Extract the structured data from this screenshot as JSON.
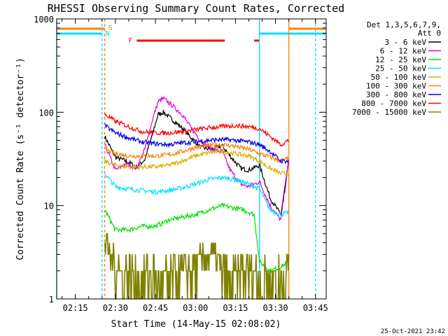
{
  "chart_data": {
    "type": "line",
    "title": "RHESSI Observing Summary Count Rates, Corrected",
    "xlabel": "Start Time (14-May-15 02:08:02)",
    "ylabel": "Corrected Count Rate (s⁻¹ detector⁻¹)",
    "yscale": "log",
    "ylim": [
      1,
      1000
    ],
    "xlim": [
      "02:08",
      "03:49"
    ],
    "x_ticks": [
      "02:15",
      "02:30",
      "02:45",
      "03:00",
      "03:15",
      "03:30",
      "03:45"
    ],
    "y_ticks": [
      "1",
      "10",
      "100",
      "1000"
    ],
    "legend": {
      "header": [
        "Det 1,3,5,6,7,9,",
        "Att 0"
      ],
      "position": "right"
    },
    "footer_date": "25-Oct-2021 23:42",
    "flags": {
      "saa_label": "S",
      "night_label": "N",
      "flare_label": "F",
      "saa_color": "#ff8000",
      "night_color": "#00e0ff",
      "flare_color": "#ff0000",
      "saa_intervals": [
        [
          "02:08",
          "02:26"
        ],
        [
          "03:35",
          "03:49"
        ]
      ],
      "night_intervals": [
        [
          "02:08",
          "02:25"
        ],
        [
          "03:24",
          "03:49"
        ]
      ],
      "flare_intervals": [
        [
          "02:38",
          "03:11"
        ],
        [
          "03:22",
          "03:24"
        ]
      ],
      "vertical_lines": [
        {
          "time": "02:08",
          "color": "#00e0ff",
          "style": "solid"
        },
        {
          "time": "02:25",
          "color": "#00e0ff",
          "style": "dashed"
        },
        {
          "time": "02:26",
          "color": "#ff8000",
          "style": "dashed"
        },
        {
          "time": "03:24",
          "color": "#00e0ff",
          "style": "solid"
        },
        {
          "time": "03:35",
          "color": "#ff8000",
          "style": "solid"
        },
        {
          "time": "03:45",
          "color": "#00e0ff",
          "style": "dashed"
        }
      ]
    },
    "series": [
      {
        "name": "3 - 6 keV",
        "color": "#000000",
        "x": [
          "02:26",
          "02:30",
          "02:34",
          "02:38",
          "02:41",
          "02:44",
          "02:46",
          "02:48",
          "02:52",
          "02:55",
          "02:58",
          "03:02",
          "03:06",
          "03:10",
          "03:13",
          "03:17",
          "03:20",
          "03:24",
          "03:28",
          "03:32",
          "03:35"
        ],
        "y": [
          55,
          33,
          30,
          26,
          31,
          60,
          95,
          100,
          80,
          68,
          55,
          42,
          40,
          44,
          34,
          25,
          24,
          27,
          12,
          8,
          30
        ]
      },
      {
        "name": "6 - 12 keV",
        "color": "#e000e0",
        "x": [
          "02:26",
          "02:30",
          "02:34",
          "02:38",
          "02:41",
          "02:44",
          "02:46",
          "02:48",
          "02:51",
          "02:55",
          "02:58",
          "03:02",
          "03:06",
          "03:10",
          "03:13",
          "03:17",
          "03:20",
          "03:24",
          "03:28",
          "03:32",
          "03:35"
        ],
        "y": [
          45,
          24,
          28,
          25,
          40,
          85,
          130,
          140,
          120,
          95,
          70,
          50,
          40,
          38,
          24,
          17,
          16,
          18,
          10,
          7,
          30
        ]
      },
      {
        "name": "12 - 25 keV",
        "color": "#00e000",
        "x": [
          "02:26",
          "02:30",
          "02:35",
          "02:40",
          "02:45",
          "02:50",
          "02:55",
          "03:00",
          "03:05",
          "03:10",
          "03:14",
          "03:18",
          "03:22",
          "03:24",
          "03:28",
          "03:32",
          "03:35"
        ],
        "y": [
          9,
          5.5,
          5.5,
          6,
          6,
          7,
          7.5,
          8,
          9,
          10,
          9.5,
          9,
          8,
          2.5,
          2,
          2.2,
          2.5
        ]
      },
      {
        "name": "25 - 50 keV",
        "color": "#00e0ff",
        "x": [
          "02:26",
          "02:30",
          "02:35",
          "02:40",
          "02:45",
          "02:50",
          "02:55",
          "03:00",
          "03:05",
          "03:10",
          "03:15",
          "03:20",
          "03:24",
          "03:28",
          "03:32",
          "03:35"
        ],
        "y": [
          22,
          16,
          15,
          14.5,
          14,
          14.5,
          15.5,
          17,
          19,
          20,
          19,
          17,
          15,
          9,
          8,
          8.5
        ]
      },
      {
        "name": "50 - 100 keV",
        "color": "#d8b000",
        "x": [
          "02:26",
          "02:30",
          "02:35",
          "02:40",
          "02:45",
          "02:50",
          "02:55",
          "03:00",
          "03:05",
          "03:10",
          "03:15",
          "03:20",
          "03:24",
          "03:28",
          "03:32",
          "03:35"
        ],
        "y": [
          30,
          27,
          26,
          26,
          26,
          27,
          30,
          34,
          37,
          38,
          36,
          34,
          30,
          25,
          22,
          22
        ]
      },
      {
        "name": "100 - 300 keV",
        "color": "#ff8000",
        "x": [
          "02:26",
          "02:30",
          "02:35",
          "02:40",
          "02:45",
          "02:50",
          "02:55",
          "03:00",
          "03:05",
          "03:10",
          "03:15",
          "03:20",
          "03:24",
          "03:28",
          "03:32",
          "03:35"
        ],
        "y": [
          40,
          36,
          34,
          34,
          34,
          35,
          38,
          42,
          44,
          45,
          43,
          40,
          36,
          33,
          30,
          32
        ]
      },
      {
        "name": "300 - 800 keV",
        "color": "#0000e0",
        "x": [
          "02:26",
          "02:30",
          "02:35",
          "02:40",
          "02:45",
          "02:50",
          "02:55",
          "03:00",
          "03:05",
          "03:10",
          "03:15",
          "03:20",
          "03:24",
          "03:28",
          "03:32",
          "03:35"
        ],
        "y": [
          72,
          60,
          53,
          48,
          46,
          45,
          47,
          48,
          50,
          51,
          50,
          48,
          45,
          38,
          30,
          30
        ]
      },
      {
        "name": "800 - 7000 keV",
        "color": "#ff0000",
        "x": [
          "02:26",
          "02:30",
          "02:35",
          "02:40",
          "02:45",
          "02:50",
          "02:55",
          "03:00",
          "03:05",
          "03:10",
          "03:15",
          "03:20",
          "03:24",
          "03:28",
          "03:32",
          "03:35"
        ],
        "y": [
          95,
          80,
          70,
          62,
          60,
          60,
          62,
          65,
          68,
          70,
          72,
          70,
          67,
          55,
          45,
          50
        ]
      },
      {
        "name": "7000 - 15000 keV",
        "color": "#808000",
        "x": [
          "02:26",
          "02:28",
          "02:30",
          "02:32",
          "02:35",
          "02:38",
          "02:42",
          "02:46",
          "02:50",
          "02:54",
          "02:58",
          "03:02",
          "03:06",
          "03:10",
          "03:14",
          "03:18",
          "03:22",
          "03:24",
          "03:28",
          "03:32",
          "03:35"
        ],
        "y": [
          4,
          3,
          2.5,
          2,
          2,
          1.5,
          2,
          1.5,
          1.5,
          2,
          2,
          2.5,
          3,
          2,
          1.5,
          2,
          2,
          1.5,
          1.5,
          1.5,
          2
        ]
      }
    ]
  }
}
